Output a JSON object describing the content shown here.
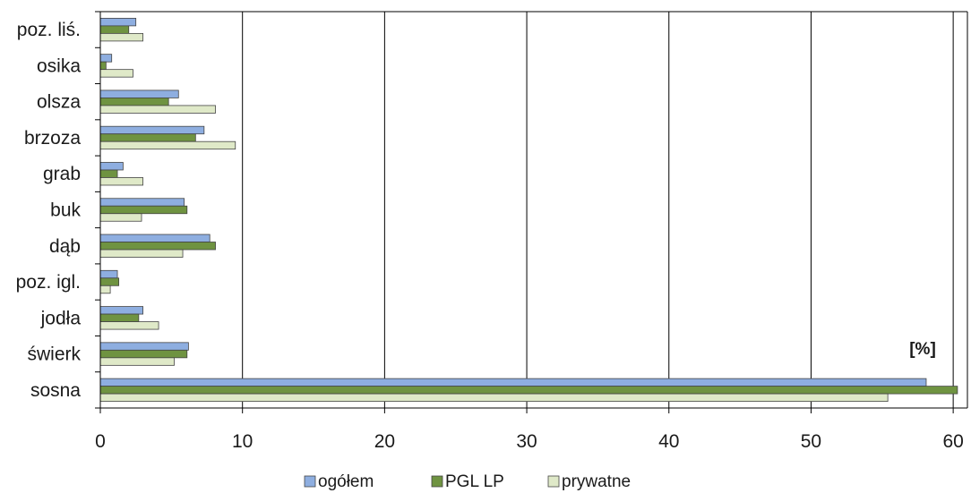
{
  "chart_data": {
    "type": "bar",
    "orientation": "horizontal",
    "categories": [
      "sosna",
      "świerk",
      "jodła",
      "poz. igl.",
      "dąb",
      "buk",
      "grab",
      "brzoza",
      "olsza",
      "osika",
      "poz. liś."
    ],
    "series": [
      {
        "name": "ogółem",
        "color": "#8eaee0",
        "values": [
          58.1,
          6.2,
          3.0,
          1.2,
          7.7,
          5.9,
          1.6,
          7.3,
          5.5,
          0.8,
          2.5
        ]
      },
      {
        "name": "PGL LP",
        "color": "#6f9341",
        "values": [
          60.3,
          6.1,
          2.7,
          1.3,
          8.1,
          6.1,
          1.2,
          6.7,
          4.8,
          0.4,
          2.0
        ]
      },
      {
        "name": "prywatne",
        "color": "#dfe9c8",
        "values": [
          55.4,
          5.2,
          4.1,
          0.7,
          5.8,
          2.9,
          3.0,
          9.5,
          8.1,
          2.3,
          3.0
        ]
      }
    ],
    "xlim": [
      0,
      61
    ],
    "xticks": [
      "0",
      "10",
      "20",
      "30",
      "40",
      "50",
      "60"
    ],
    "unit_label": "[%]",
    "grid": "vertical",
    "legend_position": "bottom"
  }
}
